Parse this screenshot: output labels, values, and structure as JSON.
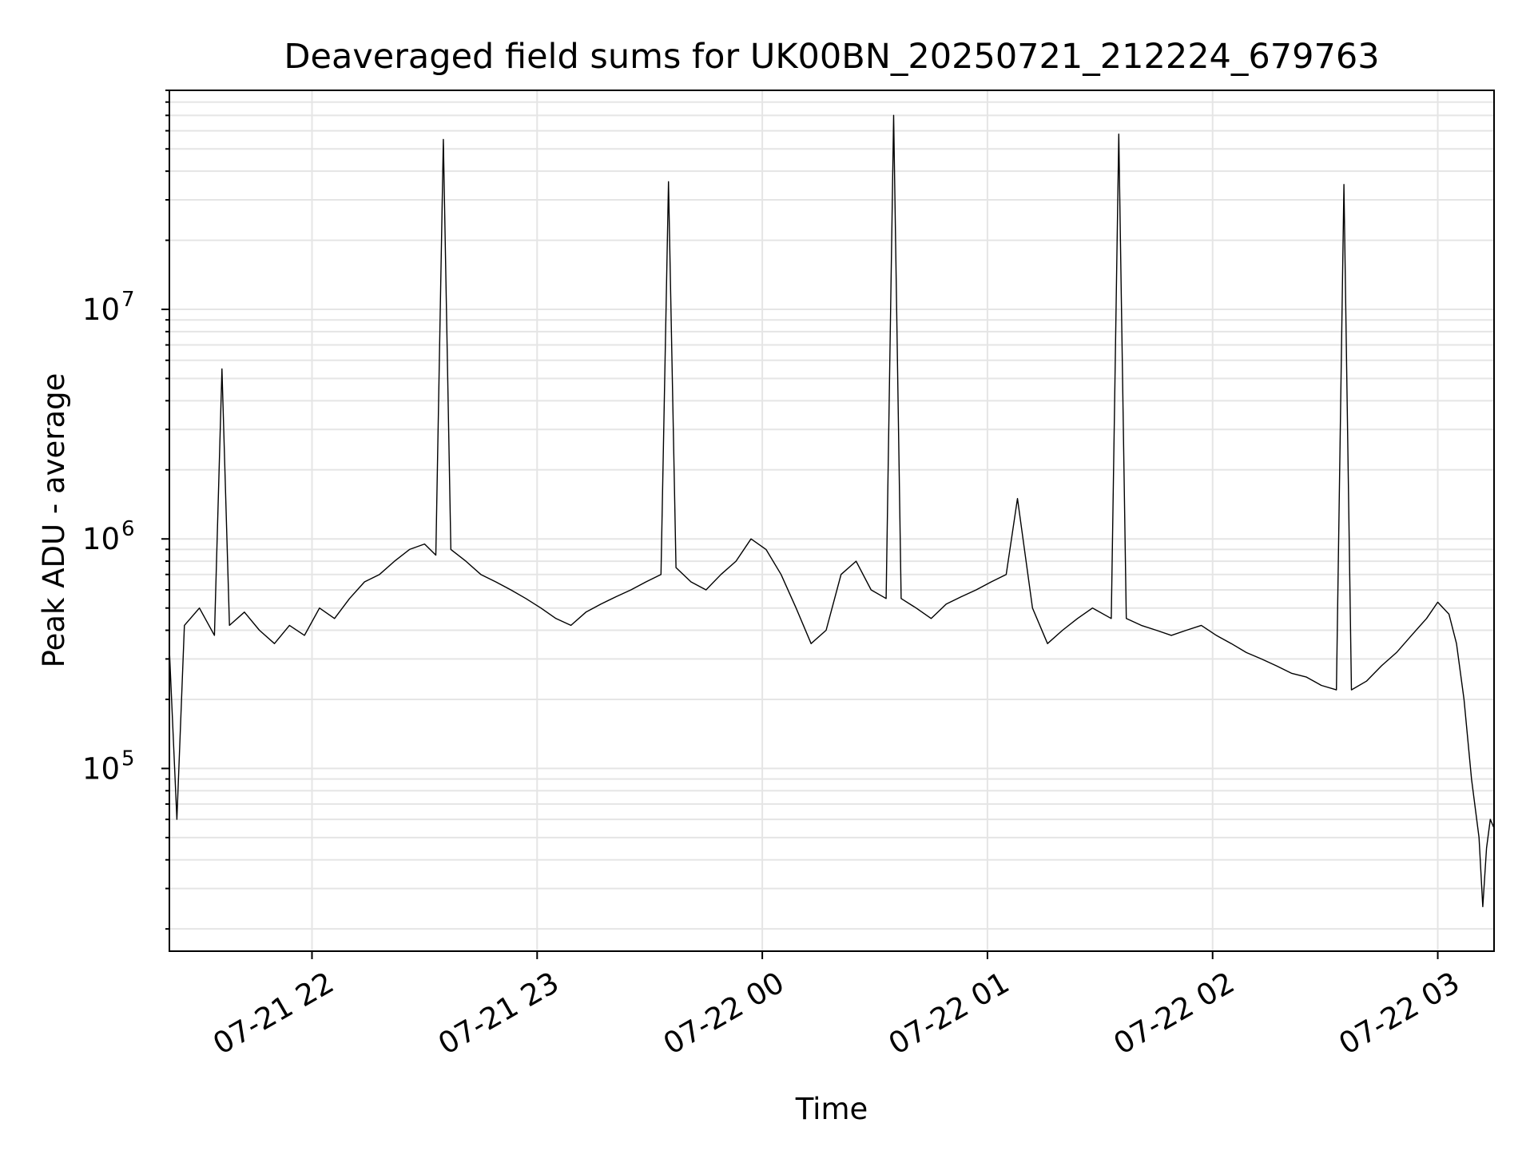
{
  "chart_data": {
    "type": "line",
    "title": "Deaveraged field sums for UK00BN_20250721_212224_679763",
    "xlabel": "Time",
    "ylabel": "Peak ADU - average",
    "xlim": [
      "2025-07-21 21:22",
      "2025-07-22 03:15"
    ],
    "ylim": [
      16000,
      90000000
    ],
    "yscale": "log",
    "grid": true,
    "line_color": "#000000",
    "x_ticks": [
      {
        "t": "2025-07-21 22:00",
        "label": "07-21 22"
      },
      {
        "t": "2025-07-21 23:00",
        "label": "07-21 23"
      },
      {
        "t": "2025-07-22 00:00",
        "label": "07-22 00"
      },
      {
        "t": "2025-07-22 01:00",
        "label": "07-22 01"
      },
      {
        "t": "2025-07-22 02:00",
        "label": "07-22 02"
      },
      {
        "t": "2025-07-22 03:00",
        "label": "07-22 03"
      }
    ],
    "y_ticks": [
      {
        "value": 100000,
        "base": "10",
        "exp": "5"
      },
      {
        "value": 1000000,
        "base": "10",
        "exp": "6"
      },
      {
        "value": 10000000,
        "base": "10",
        "exp": "7"
      }
    ],
    "series": [
      {
        "points": [
          [
            "2025-07-21 21:22",
            330000
          ],
          [
            "2025-07-21 21:24",
            60000
          ],
          [
            "2025-07-21 21:26",
            420000
          ],
          [
            "2025-07-21 21:30",
            500000
          ],
          [
            "2025-07-21 21:34",
            380000
          ],
          [
            "2025-07-21 21:36",
            5500000
          ],
          [
            "2025-07-21 21:38",
            420000
          ],
          [
            "2025-07-21 21:42",
            480000
          ],
          [
            "2025-07-21 21:46",
            400000
          ],
          [
            "2025-07-21 21:50",
            350000
          ],
          [
            "2025-07-21 21:54",
            420000
          ],
          [
            "2025-07-21 21:58",
            380000
          ],
          [
            "2025-07-21 22:02",
            500000
          ],
          [
            "2025-07-21 22:06",
            450000
          ],
          [
            "2025-07-21 22:10",
            550000
          ],
          [
            "2025-07-21 22:14",
            650000
          ],
          [
            "2025-07-21 22:18",
            700000
          ],
          [
            "2025-07-21 22:22",
            800000
          ],
          [
            "2025-07-21 22:26",
            900000
          ],
          [
            "2025-07-21 22:30",
            950000
          ],
          [
            "2025-07-21 22:33",
            850000
          ],
          [
            "2025-07-21 22:35",
            55000000
          ],
          [
            "2025-07-21 22:37",
            900000
          ],
          [
            "2025-07-21 22:41",
            800000
          ],
          [
            "2025-07-21 22:45",
            700000
          ],
          [
            "2025-07-21 22:49",
            650000
          ],
          [
            "2025-07-21 22:53",
            600000
          ],
          [
            "2025-07-21 22:57",
            550000
          ],
          [
            "2025-07-21 23:01",
            500000
          ],
          [
            "2025-07-21 23:05",
            450000
          ],
          [
            "2025-07-21 23:09",
            420000
          ],
          [
            "2025-07-21 23:13",
            480000
          ],
          [
            "2025-07-21 23:17",
            520000
          ],
          [
            "2025-07-21 23:21",
            560000
          ],
          [
            "2025-07-21 23:25",
            600000
          ],
          [
            "2025-07-21 23:29",
            650000
          ],
          [
            "2025-07-21 23:33",
            700000
          ],
          [
            "2025-07-21 23:35",
            36000000
          ],
          [
            "2025-07-21 23:37",
            750000
          ],
          [
            "2025-07-21 23:41",
            650000
          ],
          [
            "2025-07-21 23:45",
            600000
          ],
          [
            "2025-07-21 23:49",
            700000
          ],
          [
            "2025-07-21 23:53",
            800000
          ],
          [
            "2025-07-21 23:57",
            1000000
          ],
          [
            "2025-07-22 00:01",
            900000
          ],
          [
            "2025-07-22 00:05",
            700000
          ],
          [
            "2025-07-22 00:09",
            500000
          ],
          [
            "2025-07-22 00:13",
            350000
          ],
          [
            "2025-07-22 00:17",
            400000
          ],
          [
            "2025-07-22 00:21",
            700000
          ],
          [
            "2025-07-22 00:25",
            800000
          ],
          [
            "2025-07-22 00:29",
            600000
          ],
          [
            "2025-07-22 00:33",
            550000
          ],
          [
            "2025-07-22 00:35",
            70000000
          ],
          [
            "2025-07-22 00:37",
            550000
          ],
          [
            "2025-07-22 00:41",
            500000
          ],
          [
            "2025-07-22 00:45",
            450000
          ],
          [
            "2025-07-22 00:49",
            520000
          ],
          [
            "2025-07-22 00:53",
            560000
          ],
          [
            "2025-07-22 00:57",
            600000
          ],
          [
            "2025-07-22 01:01",
            650000
          ],
          [
            "2025-07-22 01:05",
            700000
          ],
          [
            "2025-07-22 01:08",
            1500000
          ],
          [
            "2025-07-22 01:12",
            500000
          ],
          [
            "2025-07-22 01:16",
            350000
          ],
          [
            "2025-07-22 01:20",
            400000
          ],
          [
            "2025-07-22 01:24",
            450000
          ],
          [
            "2025-07-22 01:28",
            500000
          ],
          [
            "2025-07-22 01:33",
            450000
          ],
          [
            "2025-07-22 01:35",
            58000000
          ],
          [
            "2025-07-22 01:37",
            450000
          ],
          [
            "2025-07-22 01:41",
            420000
          ],
          [
            "2025-07-22 01:45",
            400000
          ],
          [
            "2025-07-22 01:49",
            380000
          ],
          [
            "2025-07-22 01:53",
            400000
          ],
          [
            "2025-07-22 01:57",
            420000
          ],
          [
            "2025-07-22 02:01",
            380000
          ],
          [
            "2025-07-22 02:05",
            350000
          ],
          [
            "2025-07-22 02:09",
            320000
          ],
          [
            "2025-07-22 02:13",
            300000
          ],
          [
            "2025-07-22 02:17",
            280000
          ],
          [
            "2025-07-22 02:21",
            260000
          ],
          [
            "2025-07-22 02:25",
            250000
          ],
          [
            "2025-07-22 02:29",
            230000
          ],
          [
            "2025-07-22 02:33",
            220000
          ],
          [
            "2025-07-22 02:35",
            35000000
          ],
          [
            "2025-07-22 02:37",
            220000
          ],
          [
            "2025-07-22 02:41",
            240000
          ],
          [
            "2025-07-22 02:45",
            280000
          ],
          [
            "2025-07-22 02:49",
            320000
          ],
          [
            "2025-07-22 02:53",
            380000
          ],
          [
            "2025-07-22 02:57",
            450000
          ],
          [
            "2025-07-22 03:00",
            530000
          ],
          [
            "2025-07-22 03:03",
            470000
          ],
          [
            "2025-07-22 03:05",
            350000
          ],
          [
            "2025-07-22 03:07",
            200000
          ],
          [
            "2025-07-22 03:09",
            90000
          ],
          [
            "2025-07-22 03:11",
            50000
          ],
          [
            "2025-07-22 03:12",
            25000
          ],
          [
            "2025-07-22 03:13",
            45000
          ],
          [
            "2025-07-22 03:14",
            60000
          ],
          [
            "2025-07-22 03:15",
            55000
          ]
        ]
      }
    ]
  }
}
